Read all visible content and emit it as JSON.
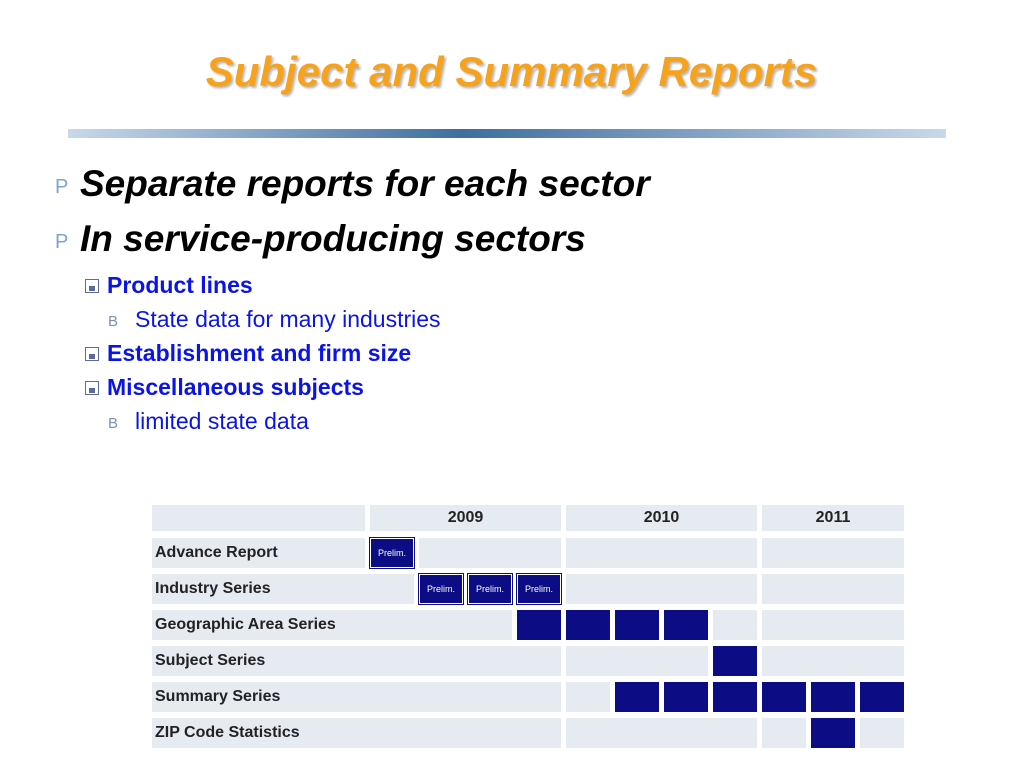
{
  "title": "Subject  and Summary Reports",
  "bullets": [
    {
      "marker": "P",
      "text": "Separate reports for each sector"
    },
    {
      "marker": "P",
      "text": "In service-producing sectors",
      "children": [
        {
          "text": "Product lines",
          "children": [
            {
              "marker": "B",
              "text": "State data for many industries"
            }
          ]
        },
        {
          "text": "Establishment and firm size"
        },
        {
          "text": "Miscellaneous subjects",
          "children": [
            {
              "marker": "B",
              "text": "limited state data"
            }
          ]
        }
      ]
    }
  ],
  "schedule": {
    "years": [
      "2009",
      "2010",
      "2011"
    ],
    "rows": [
      {
        "label": "Advance Report",
        "cells": [
          "Prelim.",
          null,
          null,
          null,
          null,
          null,
          null,
          null,
          null,
          null,
          null
        ]
      },
      {
        "label": "Industry Series",
        "cells": [
          null,
          "Prelim.",
          "Prelim.",
          "Prelim.",
          null,
          null,
          null,
          null,
          null,
          null,
          null
        ]
      },
      {
        "label": "Geographic Area Series",
        "cells": [
          null,
          null,
          null,
          true,
          true,
          true,
          true,
          null,
          null,
          null,
          null
        ]
      },
      {
        "label": "Subject Series",
        "cells": [
          null,
          null,
          null,
          null,
          null,
          null,
          null,
          true,
          null,
          null,
          null
        ]
      },
      {
        "label": "Summary Series",
        "cells": [
          null,
          null,
          null,
          null,
          null,
          true,
          true,
          true,
          true,
          true,
          true
        ]
      },
      {
        "label": "ZIP Code Statistics",
        "cells": [
          null,
          null,
          null,
          null,
          null,
          null,
          null,
          null,
          null,
          true,
          null
        ]
      }
    ]
  }
}
